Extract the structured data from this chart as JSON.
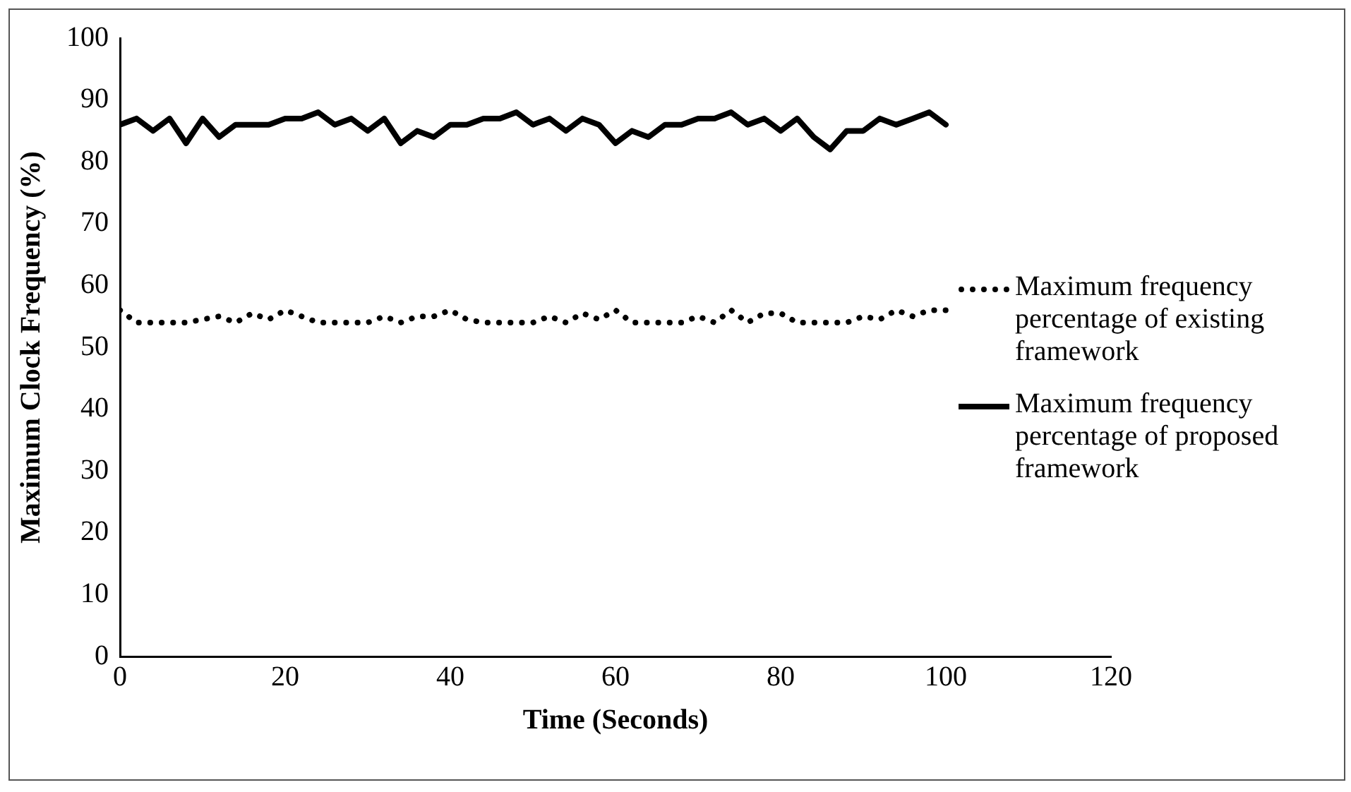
{
  "chart_data": {
    "type": "line",
    "xlabel": "Time (Seconds)",
    "ylabel": "Maximum Clock Frequency (%)",
    "xlim": [
      0,
      120
    ],
    "xticks": [
      0,
      20,
      40,
      60,
      80,
      100,
      120
    ],
    "ylim": [
      0,
      100
    ],
    "yticks": [
      0,
      10,
      20,
      30,
      40,
      50,
      60,
      70,
      80,
      90,
      100
    ],
    "grid": false,
    "legend": "right",
    "marker": "none",
    "series": [
      {
        "name": "Maximum frequency percentage of existing framework",
        "color": "#000000",
        "line_style": "dotted",
        "x": [
          0,
          2,
          4,
          6,
          8,
          10,
          12,
          14,
          16,
          18,
          20,
          22,
          24,
          26,
          28,
          30,
          32,
          34,
          36,
          38,
          40,
          42,
          44,
          46,
          48,
          50,
          52,
          54,
          56,
          58,
          60,
          62,
          64,
          66,
          68,
          70,
          72,
          74,
          76,
          78,
          80,
          82,
          84,
          86,
          88,
          90,
          92,
          94,
          96,
          98,
          100
        ],
        "values": [
          56,
          54,
          54,
          54,
          54,
          54.5,
          55,
          54,
          55.5,
          54.5,
          56,
          55,
          54,
          54,
          54,
          54,
          55,
          54,
          55,
          55,
          56,
          54.5,
          54,
          54,
          54,
          54,
          55,
          54,
          55.5,
          54.5,
          56,
          54,
          54,
          54,
          54,
          55,
          54,
          56,
          54,
          55.5,
          55.5,
          54,
          54,
          54,
          54,
          55,
          54.5,
          56,
          55,
          56,
          56
        ]
      },
      {
        "name": "Maximum frequency percentage of proposed framework",
        "color": "#000000",
        "line_style": "solid",
        "x": [
          0,
          2,
          4,
          6,
          8,
          10,
          12,
          14,
          16,
          18,
          20,
          22,
          24,
          26,
          28,
          30,
          32,
          34,
          36,
          38,
          40,
          42,
          44,
          46,
          48,
          50,
          52,
          54,
          56,
          58,
          60,
          62,
          64,
          66,
          68,
          70,
          72,
          74,
          76,
          78,
          80,
          82,
          84,
          86,
          88,
          90,
          92,
          94,
          96,
          98,
          100
        ],
        "values": [
          86,
          87,
          85,
          87,
          83,
          87,
          84,
          86,
          86,
          86,
          87,
          87,
          88,
          86,
          87,
          85,
          87,
          83,
          85,
          84,
          86,
          86,
          87,
          87,
          88,
          86,
          87,
          85,
          87,
          86,
          83,
          85,
          84,
          86,
          86,
          87,
          87,
          88,
          86,
          87,
          85,
          87,
          84,
          82,
          85,
          85,
          87,
          86,
          87,
          88,
          86
        ]
      }
    ]
  }
}
